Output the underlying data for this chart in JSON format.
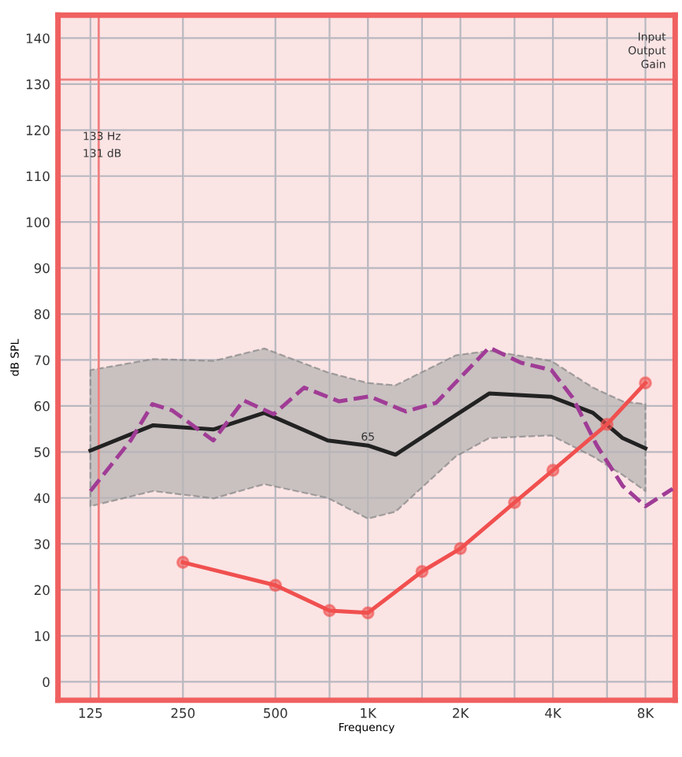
{
  "chart_data": {
    "type": "line",
    "xlabel": "Frequency",
    "ylabel": "dB SPL",
    "log": "x",
    "xlim": [
      98,
      10000
    ],
    "ylim": [
      -4,
      145
    ],
    "xticks": [
      125,
      250,
      500,
      {
        "value": 750,
        "label": null
      },
      {
        "value": 1000,
        "label": "1K"
      },
      {
        "value": 1500,
        "label": null
      },
      {
        "value": 2000,
        "label": "2K"
      },
      {
        "value": 3000,
        "label": null
      },
      {
        "value": 4000,
        "label": "4K"
      },
      {
        "value": 6000,
        "label": null
      },
      {
        "value": 8000,
        "label": "8K"
      }
    ],
    "yticks": [
      0,
      10,
      20,
      30,
      40,
      50,
      60,
      70,
      80,
      90,
      100,
      110,
      120,
      130,
      140
    ],
    "grid": true,
    "legend": false,
    "series": [
      {
        "color": "#222222",
        "line_style": "solid",
        "marker": "none",
        "x": [
          125,
          200,
          315,
          460,
          740,
          1000,
          1230,
          1930,
          2480,
          3950,
          5400,
          6750,
          8000
        ],
        "values": [
          50.3,
          55.8,
          54.9,
          58.5,
          52.5,
          51.4,
          49.4,
          58,
          62.7,
          62,
          58.5,
          53,
          50.8
        ],
        "lower": [
          38.2,
          41.5,
          39.9,
          43,
          40,
          35.5,
          37,
          49,
          53,
          53.6,
          49,
          45,
          41.5
        ],
        "upper": [
          67.8,
          70.2,
          69.8,
          72.5,
          67.3,
          65,
          64.5,
          71,
          72,
          69.8,
          64,
          61,
          60.4
        ]
      },
      {
        "color": "#a03c96",
        "line_style": "dashed",
        "marker": "none",
        "x": [
          125,
          169,
          199,
          231,
          314,
          394,
          494,
          620,
          806,
          1011,
          1329,
          1668,
          2481,
          3151,
          3955,
          4637,
          5560,
          6750,
          8000,
          9815
        ],
        "values": [
          41.5,
          52.5,
          60.4,
          59,
          52.5,
          61.2,
          58.2,
          64,
          61,
          62.1,
          58.8,
          60.7,
          72.7,
          69.4,
          67.8,
          61.8,
          51.4,
          42.6,
          38.2,
          42
        ]
      },
      {
        "color": "#f0504f",
        "line_style": "solid",
        "marker": "circle",
        "x": [
          250,
          500,
          750,
          1000,
          1500,
          2000,
          3000,
          4000,
          6000,
          8000
        ],
        "values": [
          26,
          21,
          15.5,
          15,
          24,
          29,
          39,
          46,
          56,
          65
        ]
      }
    ],
    "ref_lines": [
      {
        "axis": "x",
        "value": 133,
        "color": "#f08080"
      },
      {
        "axis": "y",
        "value": 131,
        "color": "#f08080"
      }
    ],
    "annotations": [
      "133 Hz",
      "131 dB",
      "Input",
      "Output",
      "Gain",
      {
        "text": "65",
        "x": 1000,
        "y": 52
      }
    ]
  }
}
